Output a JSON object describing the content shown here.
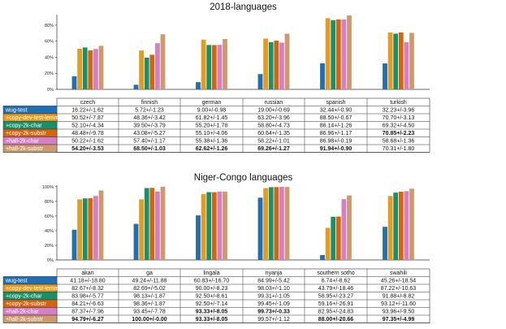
{
  "chart_data": [
    {
      "type": "bar",
      "title": "2018-languages",
      "categories": [
        "czech",
        "finnish",
        "german",
        "russian",
        "spanish",
        "turkish"
      ],
      "yticks": [
        "0%",
        "20%",
        "40%",
        "60%",
        "80%"
      ],
      "ylim": [
        0,
        93
      ],
      "series": [
        {
          "name": "wug-test",
          "color": "#1f6fb4",
          "values": [
            16.22,
            5.72,
            9.0,
            19.0,
            32.44,
            32.23
          ],
          "cells": [
            "16.22+/-1.62",
            "5.72+/-1.23",
            "9.00+/-0.98",
            "19.00+/-0.69",
            "32.44+/-0.90",
            "32.23+/-3.96"
          ],
          "bold": [
            false,
            false,
            false,
            false,
            false,
            false
          ]
        },
        {
          "name": "+copy-dev-test-lemmas",
          "color": "#e69b1c",
          "values": [
            50.52,
            48.36,
            61.82,
            63.2,
            88.5,
            70.7
          ],
          "cells": [
            "50.52+/-7.87",
            "48.36+/-3.42",
            "61.82+/-1.45",
            "63.20+/-3.96",
            "88.50+/-0.67",
            "70.70+/-3.13"
          ],
          "bold": [
            false,
            false,
            false,
            false,
            false,
            false
          ]
        },
        {
          "name": "+copy-2k-char",
          "color": "#17916b",
          "values": [
            52.1,
            39.5,
            55.2,
            58.8,
            86.14,
            69.32
          ],
          "cells": [
            "52.10+/-4.34",
            "39.50+/-3.79",
            "55.20+/-1.78",
            "58.80+/-4.73",
            "86.14+/-1.26",
            "69.32+/-4.50"
          ],
          "bold": [
            false,
            false,
            false,
            false,
            false,
            false
          ]
        },
        {
          "name": "+copy-2k-substr",
          "color": "#d5640e",
          "values": [
            48.48,
            43.08,
            55.1,
            60.64,
            86.96,
            70.85
          ],
          "cells": [
            "48.48+/-9.78",
            "43.08+/-5.27",
            "55.10+/-4.06",
            "60.64+/-1.35",
            "86.96+/-1.17",
            "70.85+/-2.23"
          ],
          "bold": [
            false,
            false,
            false,
            false,
            false,
            true
          ]
        },
        {
          "name": "+hall-2k-char",
          "color": "#d57fc4",
          "values": [
            50.22,
            57.4,
            55.38,
            58.22,
            86.98,
            58.68
          ],
          "cells": [
            "50.22+/-1.62",
            "57.40+/-1.17",
            "55.38+/-1.36",
            "58.22+/-1.01",
            "86.98+/-0.19",
            "58.68+/-1.36"
          ],
          "bold": [
            false,
            false,
            false,
            false,
            false,
            false
          ]
        },
        {
          "name": "+hall-2k-substr",
          "color": "#cd9a6e",
          "values": [
            54.2,
            68.5,
            62.62,
            69.26,
            91.94,
            70.31
          ],
          "cells": [
            "54.20+/-3.53",
            "68.50+/-1.03",
            "62.62+/-1.26",
            "69.26+/-1.27",
            "91.94+/-0.90",
            "70.31+/-1.80"
          ],
          "bold": [
            true,
            true,
            true,
            true,
            true,
            false
          ]
        }
      ]
    },
    {
      "type": "bar",
      "title": "Niger-Congo languages",
      "categories": [
        "akan",
        "ga",
        "lingala",
        "nyanja",
        "southern sotho",
        "swahili"
      ],
      "yticks": [
        "0%",
        "20%",
        "40%",
        "60%",
        "80%",
        "100%"
      ],
      "ylim": [
        0,
        102
      ],
      "series": [
        {
          "name": "wug-test",
          "color": "#1f6fb4",
          "values": [
            41.18,
            49.24,
            60.83,
            84.99,
            6.74,
            45.26
          ],
          "cells": [
            "41.18+/-18.80",
            "49.24+/-11.88",
            "60.83+/-16.70",
            "84.99+/-5.42",
            "6.74+/-8.62",
            "45.26+/-18.54"
          ],
          "bold": [
            false,
            false,
            false,
            false,
            false,
            false
          ]
        },
        {
          "name": "+copy-dev-test-lemmas",
          "color": "#e69b1c",
          "values": [
            82.67,
            82.69,
            90.0,
            98.03,
            43.79,
            87.22
          ],
          "cells": [
            "82.67+/-8.32",
            "82.69+/-5.02",
            "90.00+/-8.23",
            "98.03+/-1.10",
            "43.79+/-18.46",
            "87.22+/-10.63"
          ],
          "bold": [
            false,
            false,
            false,
            false,
            false,
            false
          ]
        },
        {
          "name": "+copy-2k-char",
          "color": "#17916b",
          "values": [
            83.98,
            98.13,
            92.5,
            99.31,
            58.95,
            91.88
          ],
          "cells": [
            "83.98+/-5.77",
            "98.13+/-1.87",
            "92.50+/-8.61",
            "99.31+/-1.05",
            "58.95+/-23.27",
            "91.88+/-8.82"
          ],
          "bold": [
            false,
            false,
            false,
            false,
            false,
            false
          ]
        },
        {
          "name": "+copy-2k-substr",
          "color": "#d5640e",
          "values": [
            84.21,
            98.36,
            92.5,
            99.45,
            59.16,
            93.12
          ],
          "cells": [
            "84.21+/-6.63",
            "98.36+/-1.87",
            "92.50+/-7.14",
            "99.45+/-1.09",
            "59.16+/-26.91",
            "93.12+/-11.60"
          ],
          "bold": [
            false,
            false,
            false,
            false,
            false,
            false
          ]
        },
        {
          "name": "+hall-2k-char",
          "color": "#d57fc4",
          "values": [
            87.37,
            93.45,
            93.33,
            99.73,
            82.95,
            93.96
          ],
          "cells": [
            "87.37+/-7.96",
            "93.45+/-7.78",
            "93.33+/-8.05",
            "99.73+/-0.33",
            "82.95+/-24.83",
            "93.96+/-9.50"
          ],
          "bold": [
            false,
            false,
            true,
            true,
            false,
            false
          ]
        },
        {
          "name": "+hall-2k-substr",
          "color": "#cd9a6e",
          "values": [
            94.79,
            100.0,
            93.33,
            99.57,
            88.0,
            97.35
          ],
          "cells": [
            "94.79+/-6.27",
            "100.00+/-0.00",
            "93.33+/-8.05",
            "99.57+/-1.12",
            "88.00+/-20.66",
            "97.35+/-4.99"
          ],
          "bold": [
            true,
            true,
            true,
            false,
            true,
            true
          ]
        }
      ]
    }
  ]
}
